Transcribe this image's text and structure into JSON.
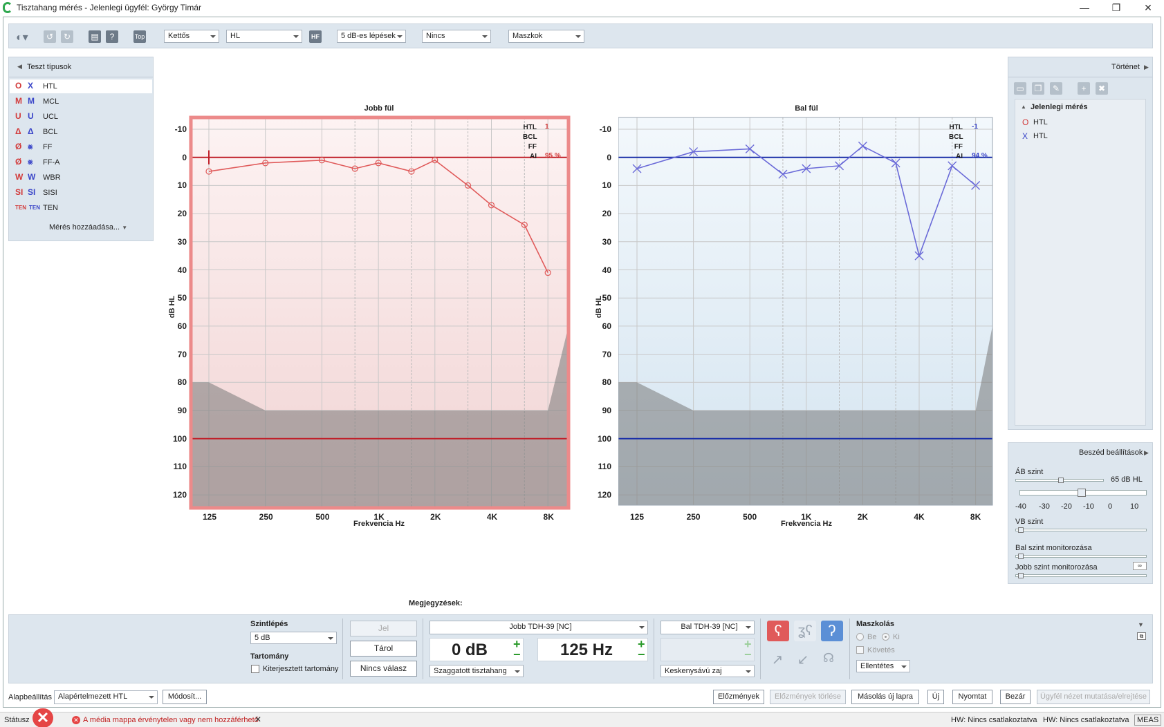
{
  "window": {
    "title": "Tisztahang mérés - Jelenlegi ügyfél: György Timár",
    "minimize": "—",
    "restore": "❐",
    "close": "✕"
  },
  "toolbar": {
    "top_label": "Top",
    "hf_label": "HF",
    "combos": [
      {
        "name": "mode-select",
        "value": "Kettős"
      },
      {
        "name": "scale-select",
        "value": "HL"
      },
      {
        "name": "step-select",
        "value": "5 dB-es lépések"
      },
      {
        "name": "none-select",
        "value": "Nincs"
      },
      {
        "name": "mask-select",
        "value": "Maszkok"
      }
    ]
  },
  "left_panel": {
    "title": "Teszt típusok",
    "add_label": "Mérés hozzáadása...",
    "items": [
      {
        "label": "HTL",
        "sym_right": "O",
        "sym_left": "X",
        "selected": true
      },
      {
        "label": "MCL",
        "sym_right": "M",
        "sym_left": "M"
      },
      {
        "label": "UCL",
        "sym_right": "U",
        "sym_left": "U"
      },
      {
        "label": "BCL",
        "sym_right": "Δ",
        "sym_left": "Δ"
      },
      {
        "label": "FF",
        "sym_right": "Ø",
        "sym_left": "⨳"
      },
      {
        "label": "FF-A",
        "sym_right": "Ø",
        "sym_left": "⨳"
      },
      {
        "label": "WBR",
        "sym_right": "W",
        "sym_left": "W"
      },
      {
        "label": "SISI",
        "sym_right": "SI",
        "sym_left": "SI"
      },
      {
        "label": "TEN",
        "sym_right": "TEN",
        "sym_left": "TEN"
      }
    ]
  },
  "right_panel": {
    "title": "Történet",
    "section": "Jelenlegi mérés",
    "items": [
      {
        "label": "HTL",
        "sym": "O",
        "color": "#d23a3a"
      },
      {
        "label": "HTL",
        "sym": "X",
        "color": "#3a45c8"
      }
    ]
  },
  "speech_panel": {
    "title": "Beszéd beállítások",
    "ab_label": "ÁB szint",
    "ab_value": "65 dB HL",
    "scale": [
      "-40",
      "-30",
      "-20",
      "-10",
      "0",
      "10"
    ],
    "vb_label": "VB szint",
    "left_mon": "Bal szint monitorozása",
    "right_mon": "Jobb szint monitorozása"
  },
  "audiograms": {
    "right": {
      "title": "Jobb fül",
      "ylabel": "dB HL",
      "xlabel": "Frekvencia Hz",
      "htl": "1",
      "ai": "95 %"
    },
    "left": {
      "title": "Bal fül",
      "ylabel": "dB HL",
      "xlabel": "Frekvencia Hz",
      "htl": "-1",
      "ai": "94 %"
    },
    "legend_labels": [
      "HTL",
      "BCL",
      "FF",
      "AI"
    ],
    "y_ticks": [
      "-10",
      "0",
      "10",
      "20",
      "30",
      "40",
      "50",
      "60",
      "70",
      "80",
      "90",
      "100",
      "110",
      "120"
    ],
    "x_ticks": [
      "125",
      "250",
      "500",
      "1K",
      "2K",
      "4K",
      "8K"
    ]
  },
  "chart_data": [
    {
      "type": "line",
      "title": "Jobb fül",
      "xlabel": "Frekvencia Hz",
      "ylabel": "dB HL",
      "x": [
        125,
        250,
        500,
        750,
        1000,
        1500,
        2000,
        3000,
        4000,
        6000,
        8000
      ],
      "ylim": [
        -10,
        120
      ],
      "y_inverted": true,
      "series": [
        {
          "values": [
            5,
            2,
            1,
            4,
            2,
            5,
            1,
            10,
            17,
            24,
            41
          ],
          "color": "#e05a5a",
          "marker": "circle"
        }
      ],
      "reference_lines": [
        0,
        100
      ]
    },
    {
      "type": "line",
      "title": "Bal fül",
      "xlabel": "Frekvencia Hz",
      "ylabel": "dB HL",
      "x": [
        125,
        250,
        500,
        750,
        1000,
        1500,
        2000,
        3000,
        4000,
        6000,
        8000
      ],
      "ylim": [
        -10,
        120
      ],
      "y_inverted": true,
      "series": [
        {
          "values": [
            4,
            -2,
            -3,
            6,
            4,
            3,
            -4,
            2,
            35,
            3,
            10
          ],
          "color": "#6a6ad8",
          "marker": "x"
        }
      ],
      "reference_lines": [
        0,
        100
      ]
    }
  ],
  "notes_label": "Megjegyzések:",
  "bottom": {
    "step_label": "Szintlépés",
    "step_value": "5 dB",
    "range_label": "Tartomány",
    "extended_label": "Kiterjesztett tartomány",
    "signal": "Jel",
    "store": "Tárol",
    "no_response": "Nincs válasz",
    "right_transducer": "Jobb TDH-39 [NC]",
    "left_transducer": "Bal TDH-39 [NC]",
    "level": "0 dB",
    "frequency": "125 Hz",
    "stim_type": "Szaggatott tisztahang",
    "noise_type": "Keskenysávú zaj",
    "masking_label": "Maszkolás",
    "on_label": "Be",
    "off_label": "Ki",
    "follow_label": "Követés",
    "masking_mode": "Ellentétes"
  },
  "footer": {
    "preset_label": "Alapbeállítás",
    "preset_value": "Alapértelmezett HTL",
    "modify": "Módosít...",
    "history": "Előzmények",
    "history_clear": "Előzmények törlése",
    "copy_new": "Másolás új lapra",
    "new": "Új",
    "print": "Nyomtat",
    "close": "Bezár",
    "client_view": "Ügyfél nézet mutatása/elrejtése"
  },
  "status": {
    "label": "Státusz",
    "error": "A média mappa érvénytelen vagy nem hozzáférhető",
    "hw1": "HW:  Nincs csatlakoztatva",
    "hw2": "HW:  Nincs csatlakoztatva",
    "meas": "MEAS"
  }
}
